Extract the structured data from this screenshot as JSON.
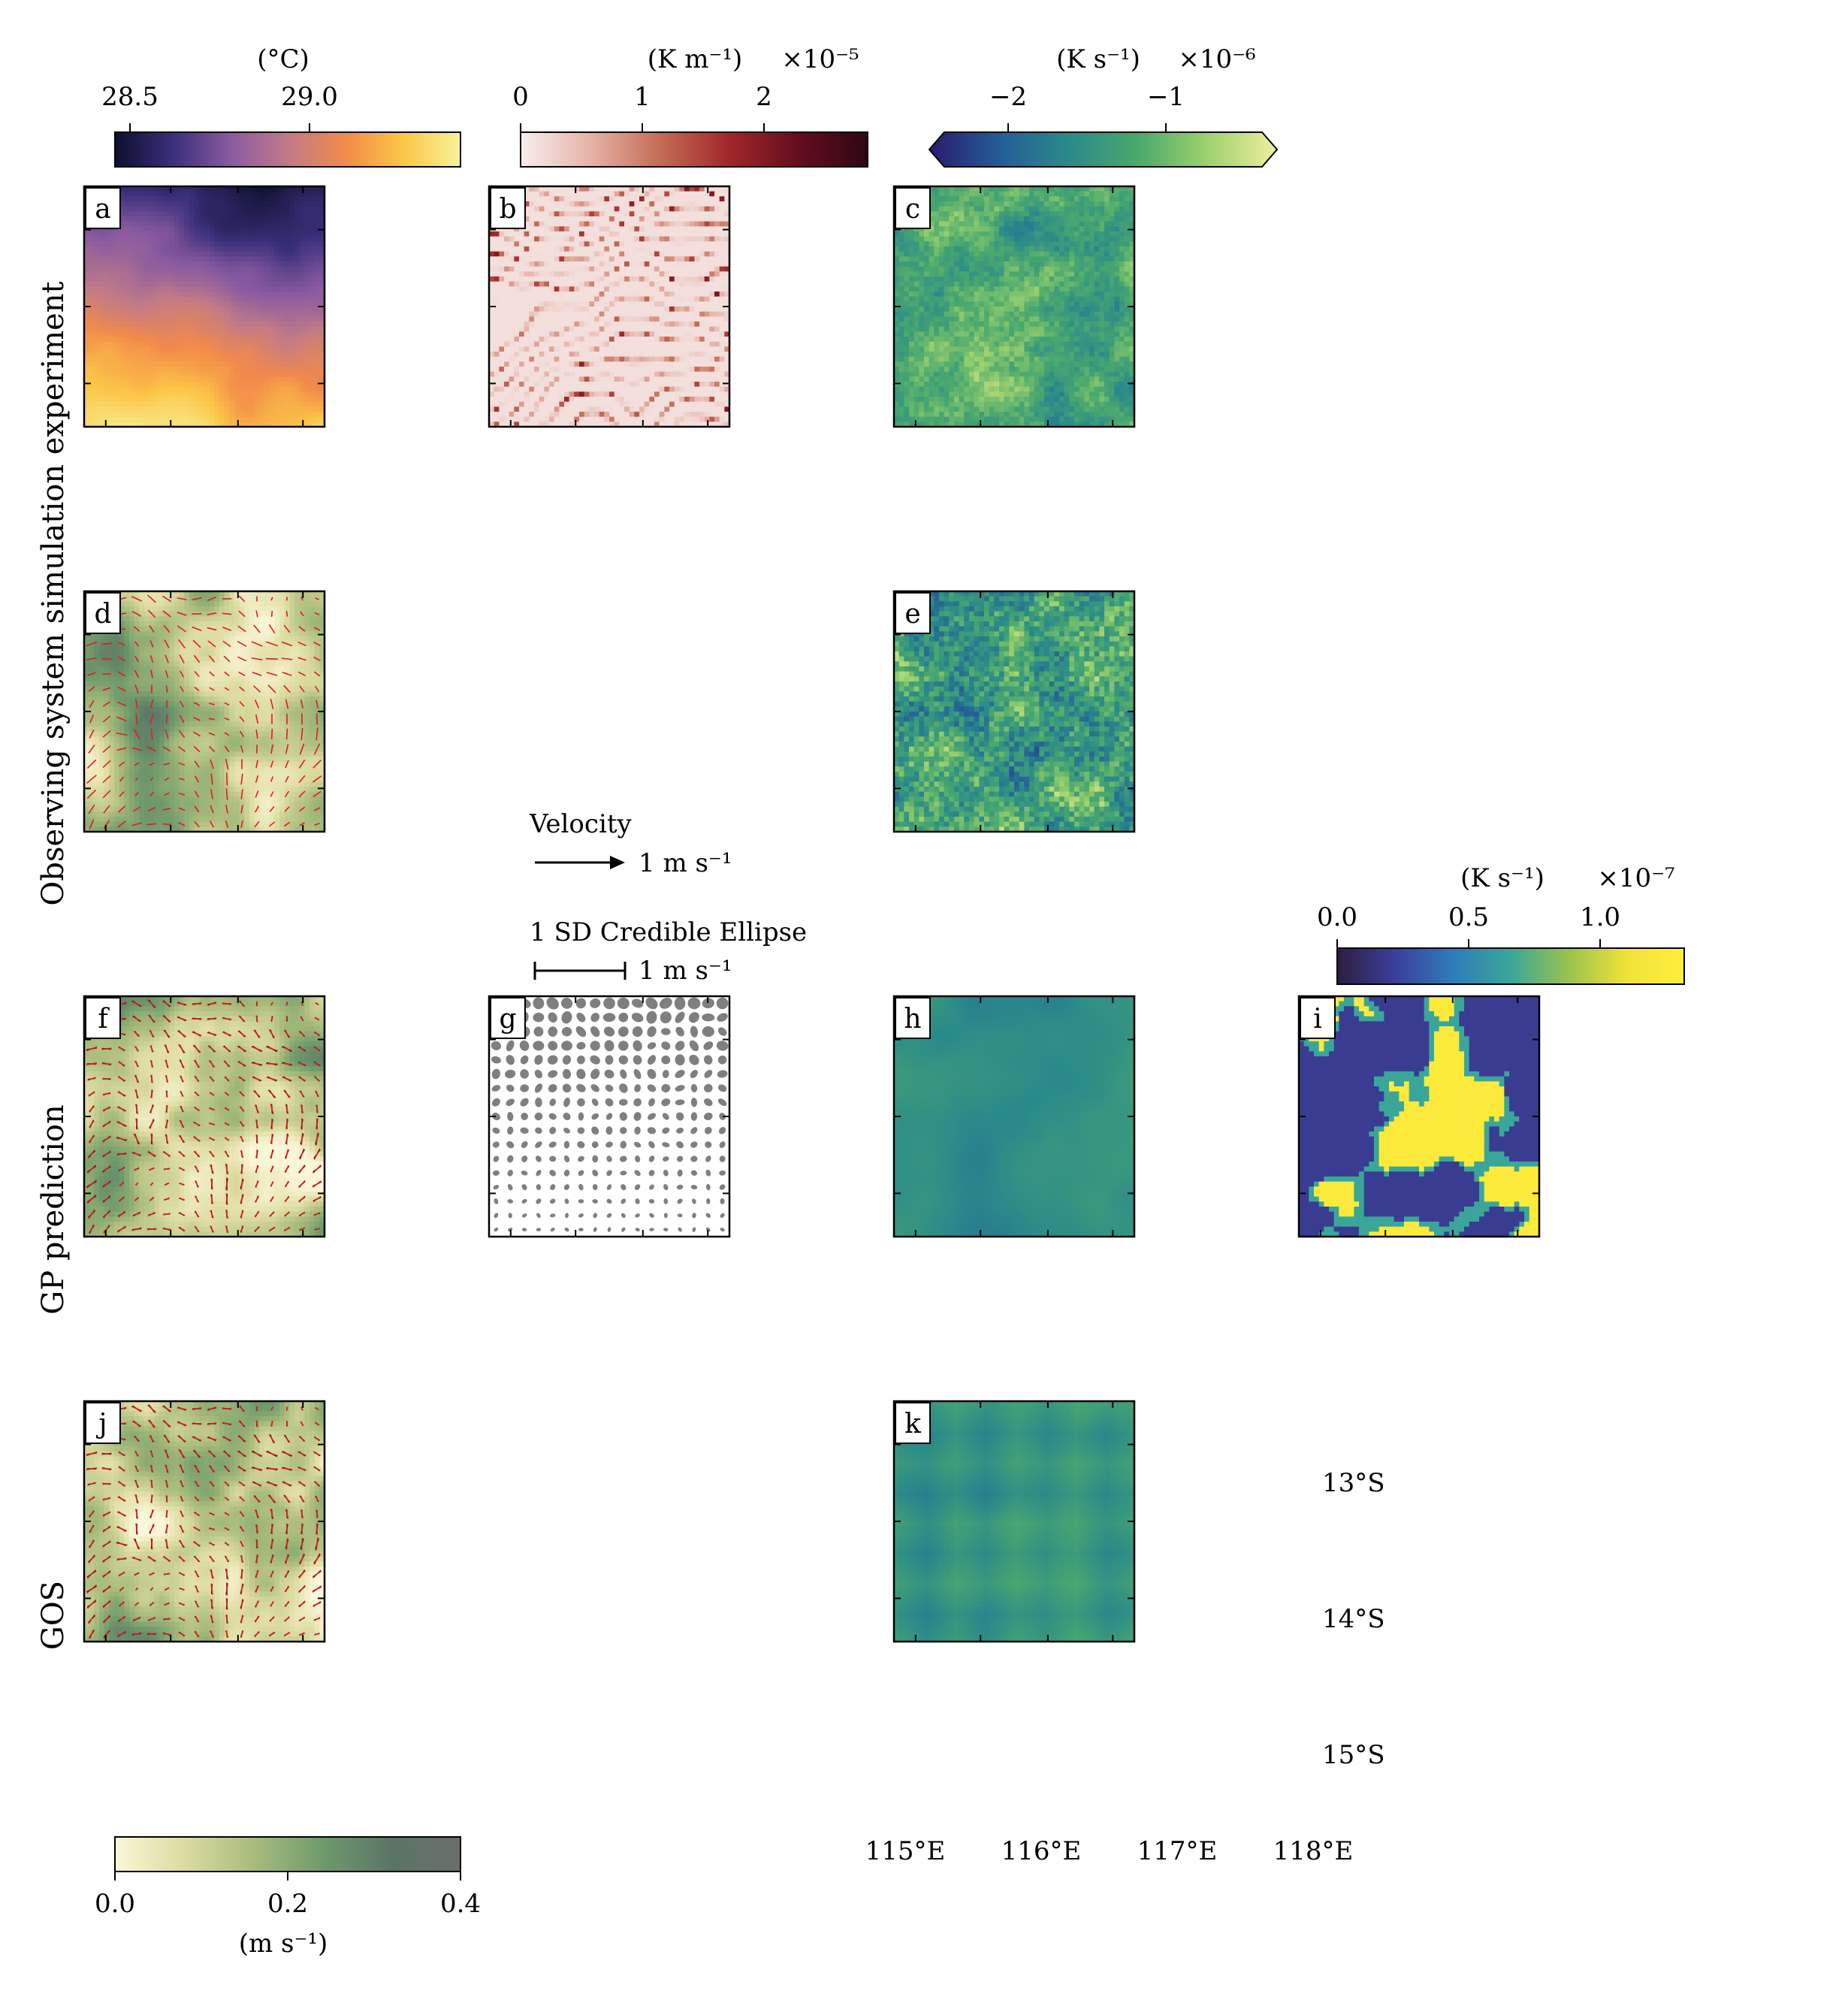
{
  "colorbars": {
    "temperature": {
      "unit": "(°C)",
      "ticks": [
        "28.5",
        "29.0"
      ],
      "tick_values": [
        28.5,
        29.0
      ],
      "range": [
        28.47,
        29.2
      ],
      "colors": [
        "#0d0f2e",
        "#3a2f7a",
        "#8a5aa0",
        "#c07a88",
        "#f28a4a",
        "#fcc647",
        "#f6f29a"
      ]
    },
    "gradient": {
      "unit": "(K m⁻¹)",
      "scale": "×10⁻⁵",
      "ticks": [
        "0",
        "1",
        "2"
      ],
      "tick_values": [
        0,
        1,
        2
      ],
      "range": [
        0,
        2.85
      ],
      "colors": [
        "#f7eeee",
        "#e6b3a8",
        "#c46d55",
        "#a2272a",
        "#640d1e",
        "#2e0713"
      ]
    },
    "tendency": {
      "unit": "(K s⁻¹)",
      "scale": "×10⁻⁶",
      "ticks": [
        "−2",
        "−1"
      ],
      "tick_values": [
        -2,
        -1
      ],
      "range": [
        -2.5,
        -0.28
      ],
      "colors": [
        "#2a1a6e",
        "#255c96",
        "#2a8a8a",
        "#4aa86e",
        "#9ed26e",
        "#f0ef9c"
      ]
    },
    "uncertainty": {
      "unit": "(K s⁻¹)",
      "scale": "×10⁻⁷",
      "ticks": [
        "0.0",
        "0.5",
        "1.0"
      ],
      "tick_values": [
        0,
        0.5,
        1.0
      ],
      "range": [
        0,
        1.28
      ],
      "colors": [
        "#2d1e3e",
        "#3b3f9a",
        "#2f7cb8",
        "#3aa69a",
        "#9ac34c",
        "#f0e23a",
        "#ffee3c"
      ]
    },
    "speed": {
      "unit": "(m s⁻¹)",
      "ticks": [
        "0.0",
        "0.2",
        "0.4"
      ],
      "tick_values": [
        0,
        0.2,
        0.4
      ],
      "range": [
        0,
        0.4
      ],
      "colors": [
        "#fbf6d8",
        "#dcdca0",
        "#a8bc7c",
        "#6f9a6c",
        "#5a7566",
        "#6b6e6a"
      ]
    }
  },
  "panels": [
    {
      "id": "a",
      "label": "a",
      "field": "temperature"
    },
    {
      "id": "b",
      "label": "b",
      "field": "gradient"
    },
    {
      "id": "c",
      "label": "c",
      "field": "tendency"
    },
    {
      "id": "d",
      "label": "d",
      "field": "speed"
    },
    {
      "id": "e",
      "label": "e",
      "field": "tendency"
    },
    {
      "id": "f",
      "label": "f",
      "field": "speed"
    },
    {
      "id": "g",
      "label": "g",
      "field": "ellipses"
    },
    {
      "id": "h",
      "label": "h",
      "field": "tendency"
    },
    {
      "id": "i",
      "label": "i",
      "field": "uncertainty"
    },
    {
      "id": "j",
      "label": "j",
      "field": "speed"
    },
    {
      "id": "k",
      "label": "k",
      "field": "tendency"
    }
  ],
  "row_labels": {
    "row1": "Observing system simulation experiment",
    "row2": "GP prediction",
    "row3": "GOS"
  },
  "legend": {
    "velocity_title": "Velocity",
    "velocity_scale": "1 m s⁻¹",
    "ellipse_title": "1 SD Credible Ellipse",
    "ellipse_scale": "1 m s⁻¹"
  },
  "axes": {
    "x_ticks": [
      "115°E",
      "116°E",
      "117°E",
      "118°E"
    ],
    "y_ticks": [
      "13°S",
      "14°S",
      "15°S"
    ]
  },
  "colors": {
    "arrow_red": "#e8191c",
    "arrow_black": "#111111",
    "ellipse_gray": "#7f7f7f",
    "frame": "#000000"
  }
}
